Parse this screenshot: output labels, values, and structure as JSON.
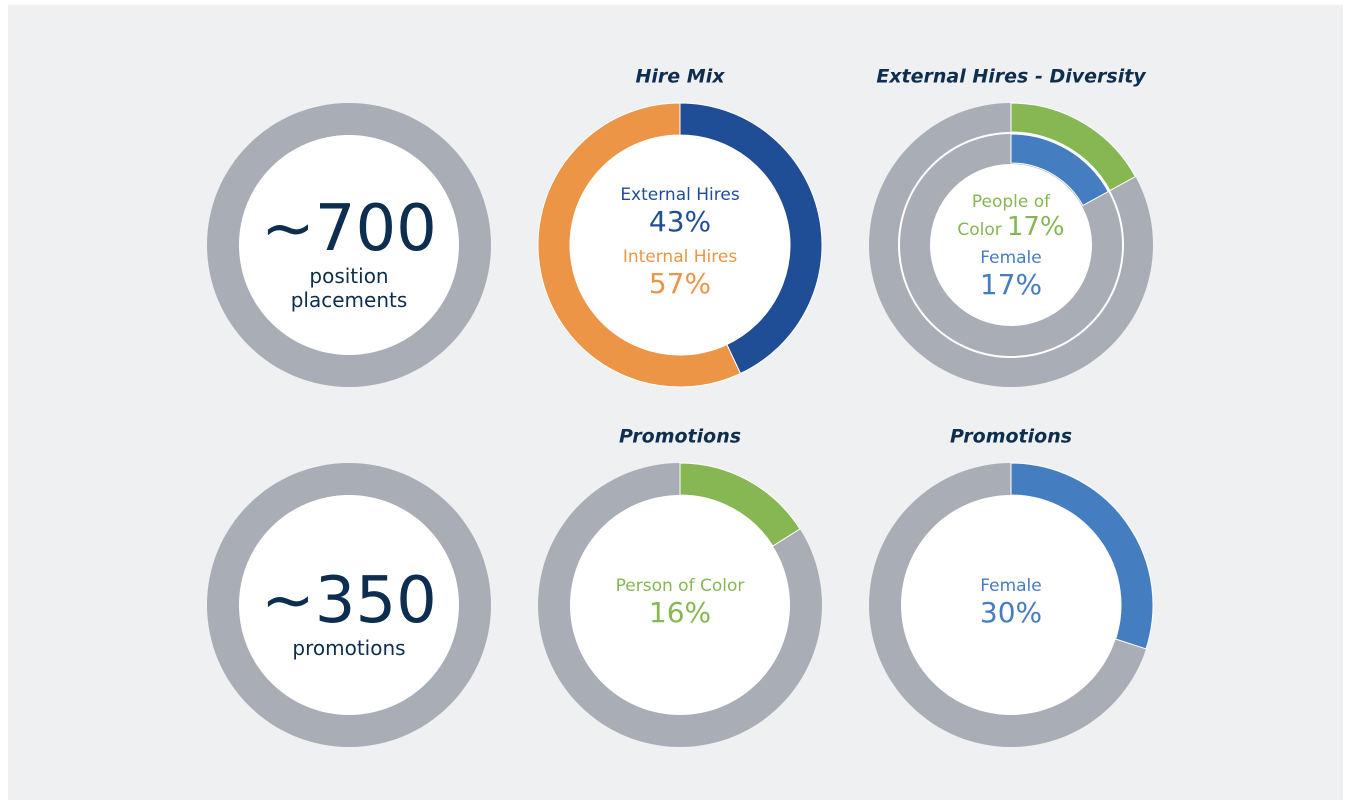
{
  "chart_data": [
    {
      "type": "kpi",
      "value": "~700",
      "label": "position placements",
      "color": "#0d2e4f",
      "track_color": "#a9adb5"
    },
    {
      "type": "donut",
      "title": "Hire Mix",
      "categories": [
        "External Hires",
        "Internal Hires"
      ],
      "values": [
        43,
        57
      ],
      "value_labels": [
        "43%",
        "57%"
      ],
      "colors": [
        "#1f4e96",
        "#ec9546"
      ],
      "track_color": "#a9adb5"
    },
    {
      "type": "rings",
      "title": "External Hires - Diversity",
      "categories": [
        "People of Color",
        "Female"
      ],
      "values": [
        17,
        17
      ],
      "value_labels": [
        "17%",
        "17%"
      ],
      "colors": [
        "#86b752",
        "#447dc0"
      ],
      "track_color": "#a9adb5"
    },
    {
      "type": "kpi",
      "value": "~350",
      "label": "promotions",
      "color": "#0d2e4f",
      "track_color": "#a9adb5"
    },
    {
      "type": "donut",
      "title": "Promotions",
      "categories": [
        "Person of Color"
      ],
      "values": [
        16
      ],
      "value_labels": [
        "16%"
      ],
      "colors": [
        "#86b752"
      ],
      "track_color": "#a9adb5"
    },
    {
      "type": "donut",
      "title": "Promotions",
      "categories": [
        "Female"
      ],
      "values": [
        30
      ],
      "value_labels": [
        "30%"
      ],
      "colors": [
        "#447dc0"
      ],
      "track_color": "#a9adb5"
    }
  ]
}
